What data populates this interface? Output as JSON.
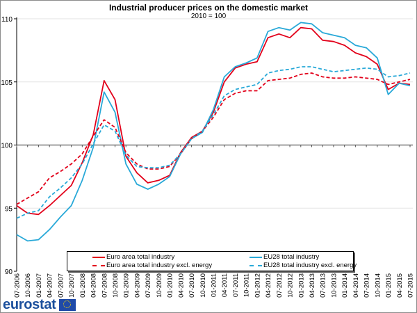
{
  "chart_data": {
    "type": "line",
    "title": "Industrial producer prices on the domestic market",
    "subtitle": "2010 = 100",
    "xlabel": "",
    "ylabel": "",
    "ylim": [
      90,
      110
    ],
    "yticks": [
      90,
      95,
      100,
      105,
      110
    ],
    "baseline": 100,
    "grid": true,
    "legend_position": "bottom-center",
    "x": [
      "07-2006",
      "10-2006",
      "01-2007",
      "04-2007",
      "07-2007",
      "10-2007",
      "01-2008",
      "04-2008",
      "07-2008",
      "10-2008",
      "01-2009",
      "04-2009",
      "07-2009",
      "10-2009",
      "01-2010",
      "04-2010",
      "07-2010",
      "10-2010",
      "01-2011",
      "04-2011",
      "07-2011",
      "10-2011",
      "01-2012",
      "04-2012",
      "07-2012",
      "10-2012",
      "01-2013",
      "04-2013",
      "07-2013",
      "10-2013",
      "01-2014",
      "04-2014",
      "07-2014",
      "10-2014",
      "01-2015",
      "04-2015",
      "07-2015"
    ],
    "series": [
      {
        "name": "Euro area total industry",
        "color": "#e2001a",
        "dash": false,
        "values": [
          95.2,
          94.6,
          94.5,
          95.2,
          96.0,
          96.8,
          98.6,
          100.8,
          105.1,
          103.6,
          99.1,
          97.8,
          97.0,
          97.2,
          97.6,
          99.4,
          100.6,
          101.1,
          102.6,
          105.0,
          106.1,
          106.4,
          106.6,
          108.5,
          108.8,
          108.5,
          109.3,
          109.2,
          108.3,
          108.2,
          107.9,
          107.3,
          107.0,
          106.4,
          104.4,
          104.9,
          104.8
        ]
      },
      {
        "name": "EU28 total industry",
        "color": "#29a9d8",
        "dash": false,
        "values": [
          92.9,
          92.4,
          92.5,
          93.3,
          94.3,
          95.2,
          97.2,
          99.8,
          104.2,
          102.6,
          98.5,
          96.9,
          96.5,
          96.9,
          97.5,
          99.3,
          100.5,
          101.0,
          102.8,
          105.4,
          106.2,
          106.5,
          106.9,
          109.0,
          109.3,
          109.1,
          109.7,
          109.6,
          108.9,
          108.7,
          108.5,
          107.9,
          107.7,
          106.9,
          104.0,
          104.9,
          104.7
        ]
      },
      {
        "name": "Euro area total industry excl. energy",
        "color": "#e2001a",
        "dash": true,
        "values": [
          95.3,
          95.8,
          96.3,
          97.4,
          97.9,
          98.5,
          99.3,
          100.7,
          102.0,
          101.4,
          99.4,
          98.5,
          98.1,
          98.1,
          98.3,
          99.3,
          100.5,
          101.1,
          102.2,
          103.6,
          104.1,
          104.3,
          104.3,
          105.1,
          105.2,
          105.3,
          105.6,
          105.7,
          105.4,
          105.3,
          105.3,
          105.4,
          105.3,
          105.2,
          104.8,
          105.0,
          105.2
        ]
      },
      {
        "name": "EU28 total industry excl. energy",
        "color": "#29a9d8",
        "dash": true,
        "values": [
          94.2,
          94.6,
          94.8,
          95.9,
          96.6,
          97.4,
          98.5,
          100.1,
          101.6,
          101.1,
          99.2,
          98.3,
          98.2,
          98.2,
          98.4,
          99.3,
          100.5,
          101.1,
          102.4,
          103.9,
          104.4,
          104.6,
          104.8,
          105.7,
          105.9,
          106.0,
          106.2,
          106.2,
          106.0,
          105.8,
          105.9,
          106.0,
          106.1,
          106.0,
          105.4,
          105.5,
          105.7
        ]
      }
    ]
  },
  "legend": {
    "items": [
      {
        "label": "Euro area total industry",
        "color": "#e2001a",
        "style": "solid"
      },
      {
        "label": "EU28 total industry",
        "color": "#29a9d8",
        "style": "solid"
      },
      {
        "label": "Euro area total industry excl. energy",
        "color": "#e2001a",
        "style": "dashed"
      },
      {
        "label": "EU28 total industry excl. energy",
        "color": "#29a9d8",
        "style": "dashed"
      }
    ]
  },
  "branding": {
    "logo_text": "eurostat",
    "flag_icon": "eu-flag-icon"
  }
}
